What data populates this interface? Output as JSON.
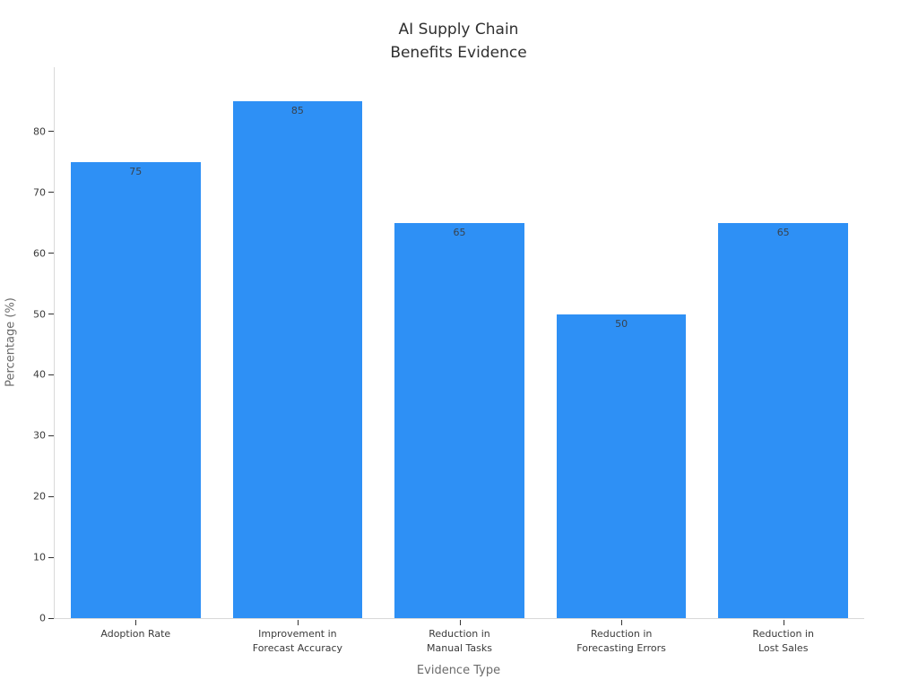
{
  "chart_data": {
    "type": "bar",
    "title": "AI Supply Chain\nBenefits Evidence",
    "xlabel": "Evidence Type",
    "ylabel": "Percentage (%)",
    "categories": [
      "Adoption Rate",
      "Improvement in\nForecast Accuracy",
      "Reduction in\nManual Tasks",
      "Reduction in\nForecasting Errors",
      "Reduction in\nLost Sales"
    ],
    "values": [
      75,
      85,
      65,
      50,
      65
    ],
    "value_labels": [
      "75",
      "85",
      "65",
      "50",
      "65"
    ],
    "yticks": [
      0,
      10,
      20,
      30,
      40,
      50,
      60,
      70,
      80
    ],
    "ylim": [
      0,
      90.6
    ],
    "grid": false,
    "legend": "none",
    "bar_color": "#2e90f5",
    "axis_line_color": "#d9d9d9",
    "tick_color": "#333333",
    "text_color": "#3a3a3a",
    "axis_title_color": "#6b6b6b",
    "background_color": "#ffffff"
  }
}
